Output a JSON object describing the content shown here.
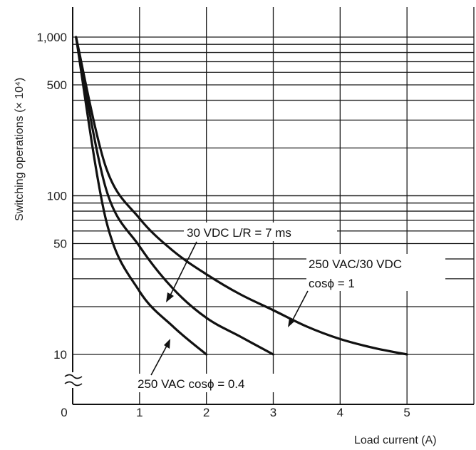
{
  "chart_data": {
    "type": "line",
    "xlabel": "Load current (A)",
    "ylabel": "Switching operations (× 10⁴)",
    "xlim": [
      0,
      6
    ],
    "ylim": [
      10,
      1000
    ],
    "yscale": "log",
    "grid": true,
    "x_ticks": [
      "0",
      "1",
      "2",
      "3",
      "4",
      "5"
    ],
    "y_ticks": [
      "1,000",
      "500",
      "100",
      "50",
      "10"
    ],
    "series": [
      {
        "name": "250 VAC/30 VDC cosϕ = 1",
        "x": [
          0.05,
          0.5,
          1,
          1.5,
          2,
          2.5,
          3,
          3.5,
          4,
          4.5,
          5
        ],
        "y": [
          1000,
          150,
          72,
          45,
          32,
          24,
          19,
          15,
          12.5,
          11,
          10
        ]
      },
      {
        "name": "30 VDC L/R = 7 ms",
        "x": [
          0.05,
          0.5,
          1,
          1.5,
          2,
          2.5,
          3
        ],
        "y": [
          1000,
          110,
          48,
          26,
          17,
          13,
          10
        ]
      },
      {
        "name": "250 VAC cosϕ = 0.4",
        "x": [
          0.05,
          0.5,
          1,
          1.5,
          2
        ],
        "y": [
          1000,
          70,
          25,
          15,
          10
        ]
      }
    ],
    "annotations": [
      {
        "line1": "30 VDC  L/R = 7 ms",
        "line2": ""
      },
      {
        "line1": "250 VAC/30 VDC",
        "line2": "cosϕ = 1"
      },
      {
        "line1": "250 VAC  cosϕ = 0.4",
        "line2": ""
      }
    ]
  }
}
